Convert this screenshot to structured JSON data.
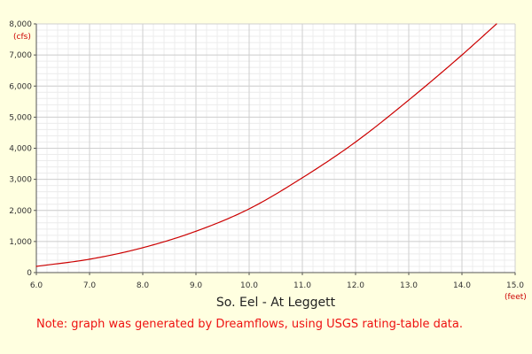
{
  "chart_data": {
    "type": "line",
    "title": "So. Eel - At Leggett",
    "note": "Note: graph was generated by Dreamflows, using USGS rating-table data.",
    "x_unit": "(feet)",
    "y_unit": "(cfs)",
    "xlim": [
      6.0,
      15.0
    ],
    "ylim": [
      0,
      8000
    ],
    "x_ticks": [
      6.0,
      7.0,
      8.0,
      9.0,
      10.0,
      11.0,
      12.0,
      13.0,
      14.0,
      15.0
    ],
    "x_tick_labels": [
      "6.0",
      "7.0",
      "8.0",
      "9.0",
      "10.0",
      "11.0",
      "12.0",
      "13.0",
      "14.0",
      "15.0"
    ],
    "y_ticks": [
      0,
      1000,
      2000,
      3000,
      4000,
      5000,
      6000,
      7000,
      8000
    ],
    "y_tick_labels": [
      "0",
      "1,000",
      "2,000",
      "3,000",
      "4,000",
      "5,000",
      "6,000",
      "7,000",
      "8,000"
    ],
    "grid": true,
    "series": [
      {
        "color": "#cc0000",
        "x": [
          6.0,
          7.0,
          8.0,
          9.0,
          10.0,
          11.0,
          12.0,
          13.0,
          14.0,
          14.65
        ],
        "y": [
          200,
          430,
          800,
          1330,
          2050,
          3050,
          4200,
          5550,
          7000,
          8000
        ]
      }
    ]
  }
}
